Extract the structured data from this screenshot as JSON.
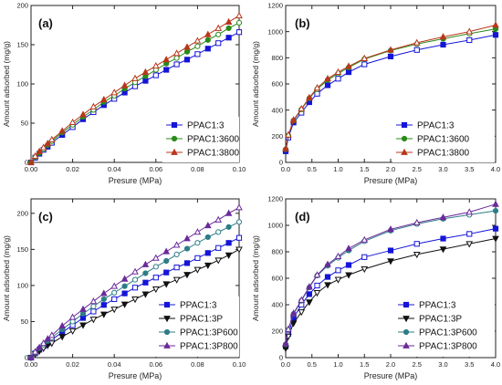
{
  "chart_data": [
    {
      "type": "line",
      "panel": "(a)",
      "xlabel": "Presure (MPa)",
      "ylabel": "Amount adsorbed (mg/g)",
      "xlim": [
        0,
        0.1
      ],
      "ylim": [
        0,
        200
      ],
      "xticks": [
        0.0,
        0.02,
        0.04,
        0.06,
        0.08,
        0.1
      ],
      "xtick_labels": [
        "0.00",
        "0.02",
        "0.04",
        "0.06",
        "0.08",
        "0.10"
      ],
      "yticks": [
        0,
        50,
        100,
        150,
        200
      ],
      "ytick_labels": [
        "0",
        "50",
        "100",
        "150",
        "200"
      ],
      "legend_position": "bottom-right",
      "series": [
        {
          "name": "PPAC1:3",
          "color": "#1515d8",
          "marker": "square",
          "x": [
            0.0,
            0.002,
            0.004,
            0.006,
            0.008,
            0.01,
            0.015,
            0.02,
            0.025,
            0.03,
            0.035,
            0.04,
            0.045,
            0.05,
            0.055,
            0.06,
            0.065,
            0.07,
            0.075,
            0.08,
            0.085,
            0.09,
            0.095,
            0.1
          ],
          "y": [
            0,
            6,
            11,
            16,
            20,
            25,
            35,
            45,
            55,
            64,
            73,
            81,
            89,
            97,
            104,
            111,
            118,
            125,
            131,
            138,
            145,
            152,
            159,
            166
          ]
        },
        {
          "name": "PPAC1:3600",
          "color": "#2a8a1a",
          "marker": "circle",
          "x": [
            0.0,
            0.002,
            0.004,
            0.006,
            0.008,
            0.01,
            0.015,
            0.02,
            0.025,
            0.03,
            0.035,
            0.04,
            0.045,
            0.05,
            0.055,
            0.06,
            0.065,
            0.07,
            0.075,
            0.08,
            0.085,
            0.09,
            0.095,
            0.1
          ],
          "y": [
            0,
            7,
            12,
            17,
            22,
            27,
            38,
            48,
            58,
            67,
            77,
            85,
            94,
            102,
            110,
            118,
            126,
            133,
            141,
            148,
            156,
            163,
            171,
            178
          ]
        },
        {
          "name": "PPAC1:3800",
          "color": "#b8371c",
          "marker": "triangle",
          "x": [
            0.0,
            0.002,
            0.004,
            0.006,
            0.008,
            0.01,
            0.015,
            0.02,
            0.025,
            0.03,
            0.035,
            0.04,
            0.045,
            0.05,
            0.055,
            0.06,
            0.065,
            0.07,
            0.075,
            0.08,
            0.085,
            0.09,
            0.095,
            0.1
          ],
          "y": [
            0,
            8,
            14,
            19,
            24,
            29,
            40,
            51,
            61,
            71,
            80,
            89,
            98,
            107,
            115,
            123,
            131,
            139,
            147,
            155,
            163,
            171,
            179,
            187
          ]
        }
      ]
    },
    {
      "type": "line",
      "panel": "(b)",
      "xlabel": "Presure (MPa)",
      "ylabel": "Amount adsorbed (mg/g)",
      "xlim": [
        0,
        4
      ],
      "ylim": [
        0,
        1200
      ],
      "xticks": [
        0.0,
        0.5,
        1.0,
        1.5,
        2.0,
        2.5,
        3.0,
        3.5,
        4.0
      ],
      "xtick_labels": [
        "0.0",
        "0.5",
        "1.0",
        "1.5",
        "2.0",
        "2.5",
        "3.0",
        "3.5",
        "4.0"
      ],
      "yticks": [
        0,
        200,
        400,
        600,
        800,
        1000,
        1200
      ],
      "ytick_labels": [
        "0",
        "200",
        "400",
        "600",
        "800",
        "1000",
        "1200"
      ],
      "legend_position": "bottom-right",
      "series": [
        {
          "name": "PPAC1:3",
          "color": "#1515d8",
          "marker": "square",
          "x": [
            0.0,
            0.05,
            0.15,
            0.3,
            0.45,
            0.6,
            0.8,
            1.0,
            1.2,
            1.5,
            2.0,
            2.5,
            3.0,
            3.5,
            4.0
          ],
          "y": [
            85,
            190,
            305,
            380,
            460,
            525,
            590,
            640,
            690,
            750,
            810,
            860,
            900,
            935,
            975
          ]
        },
        {
          "name": "PPAC1:3600",
          "color": "#2a8a1a",
          "marker": "circle",
          "x": [
            0.0,
            0.05,
            0.15,
            0.3,
            0.45,
            0.6,
            0.8,
            1.0,
            1.2,
            1.5,
            2.0,
            2.5,
            3.0,
            3.5,
            4.0
          ],
          "y": [
            100,
            205,
            320,
            405,
            490,
            560,
            630,
            680,
            725,
            790,
            855,
            905,
            945,
            985,
            1020
          ]
        },
        {
          "name": "PPAC1:3800",
          "color": "#b8371c",
          "marker": "triangle",
          "x": [
            0.0,
            0.05,
            0.15,
            0.3,
            0.45,
            0.6,
            0.8,
            1.0,
            1.2,
            1.5,
            2.0,
            2.5,
            3.0,
            3.5,
            4.0
          ],
          "y": [
            105,
            210,
            325,
            410,
            495,
            570,
            640,
            690,
            735,
            795,
            860,
            915,
            960,
            1000,
            1050
          ]
        }
      ]
    },
    {
      "type": "line",
      "panel": "(c)",
      "xlabel": "Presure (MPa)",
      "ylabel": "Amount adsorbed (mg/g)",
      "xlim": [
        0,
        0.1
      ],
      "ylim": [
        0,
        220
      ],
      "xticks": [
        0.0,
        0.02,
        0.04,
        0.06,
        0.08,
        0.1
      ],
      "xtick_labels": [
        "0.00",
        "0.02",
        "0.04",
        "0.06",
        "0.08",
        "0.10"
      ],
      "yticks": [
        0,
        50,
        100,
        150,
        200
      ],
      "ytick_labels": [
        "0",
        "50",
        "100",
        "150",
        "200"
      ],
      "legend_position": "bottom-right",
      "series": [
        {
          "name": "PPAC1:3",
          "color": "#1515d8",
          "marker": "square",
          "x": [
            0.0,
            0.002,
            0.004,
            0.006,
            0.008,
            0.01,
            0.015,
            0.02,
            0.025,
            0.03,
            0.035,
            0.04,
            0.045,
            0.05,
            0.055,
            0.06,
            0.065,
            0.07,
            0.075,
            0.08,
            0.085,
            0.09,
            0.095,
            0.1
          ],
          "y": [
            0,
            6,
            11,
            16,
            20,
            25,
            35,
            45,
            55,
            64,
            73,
            81,
            89,
            97,
            104,
            111,
            118,
            125,
            131,
            138,
            145,
            152,
            159,
            166
          ]
        },
        {
          "name": "PPAC1:3P",
          "color": "#111111",
          "marker": "triangle-down",
          "x": [
            0.0,
            0.002,
            0.004,
            0.006,
            0.008,
            0.01,
            0.015,
            0.02,
            0.025,
            0.03,
            0.035,
            0.04,
            0.045,
            0.05,
            0.055,
            0.06,
            0.065,
            0.07,
            0.075,
            0.08,
            0.085,
            0.09,
            0.095,
            0.1
          ],
          "y": [
            0,
            5,
            9,
            13,
            17,
            20,
            29,
            37,
            45,
            53,
            60,
            67,
            74,
            81,
            88,
            95,
            102,
            108,
            115,
            122,
            128,
            135,
            142,
            150
          ]
        },
        {
          "name": "PPAC1:3P600",
          "color": "#2e7d86",
          "marker": "circle",
          "x": [
            0.0,
            0.002,
            0.004,
            0.006,
            0.008,
            0.01,
            0.015,
            0.02,
            0.025,
            0.03,
            0.035,
            0.04,
            0.045,
            0.05,
            0.055,
            0.06,
            0.065,
            0.07,
            0.075,
            0.08,
            0.085,
            0.09,
            0.095,
            0.1
          ],
          "y": [
            0,
            7,
            13,
            18,
            23,
            28,
            39,
            50,
            61,
            71,
            81,
            90,
            99,
            108,
            117,
            126,
            134,
            143,
            151,
            159,
            167,
            174,
            181,
            188
          ]
        },
        {
          "name": "PPAC1:3P800",
          "color": "#6a2a9a",
          "marker": "triangle",
          "x": [
            0.0,
            0.002,
            0.004,
            0.006,
            0.008,
            0.01,
            0.015,
            0.02,
            0.025,
            0.03,
            0.035,
            0.04,
            0.045,
            0.05,
            0.055,
            0.06,
            0.065,
            0.07,
            0.075,
            0.08,
            0.085,
            0.09,
            0.095,
            0.1
          ],
          "y": [
            0,
            8,
            14,
            20,
            26,
            31,
            44,
            56,
            67,
            78,
            89,
            99,
            109,
            119,
            129,
            138,
            147,
            156,
            165,
            174,
            183,
            191,
            200,
            208
          ]
        }
      ]
    },
    {
      "type": "line",
      "panel": "(d)",
      "xlabel": "Presure (MPa)",
      "ylabel": "Amount adsorbed (mg/g)",
      "xlim": [
        0,
        4
      ],
      "ylim": [
        0,
        1200
      ],
      "xticks": [
        0.0,
        0.5,
        1.0,
        1.5,
        2.0,
        2.5,
        3.0,
        3.5,
        4.0
      ],
      "xtick_labels": [
        "0.0",
        "0.5",
        "1.0",
        "1.5",
        "2.0",
        "2.5",
        "3.0",
        "3.5",
        "4.0"
      ],
      "yticks": [
        0,
        200,
        400,
        600,
        800,
        1000,
        1200
      ],
      "ytick_labels": [
        "0",
        "200",
        "400",
        "600",
        "800",
        "1000",
        "1200"
      ],
      "legend_position": "bottom-right",
      "series": [
        {
          "name": "PPAC1:3",
          "color": "#1515d8",
          "marker": "square",
          "x": [
            0.0,
            0.05,
            0.15,
            0.3,
            0.45,
            0.6,
            0.8,
            1.0,
            1.2,
            1.5,
            2.0,
            2.5,
            3.0,
            3.5,
            4.0
          ],
          "y": [
            85,
            180,
            300,
            400,
            480,
            545,
            610,
            660,
            700,
            760,
            810,
            860,
            900,
            935,
            975
          ]
        },
        {
          "name": "PPAC1:3P",
          "color": "#111111",
          "marker": "triangle-down",
          "x": [
            0.0,
            0.05,
            0.15,
            0.3,
            0.45,
            0.6,
            0.8,
            1.0,
            1.2,
            1.5,
            2.0,
            2.5,
            3.0,
            3.5,
            4.0
          ],
          "y": [
            70,
            160,
            260,
            345,
            420,
            490,
            550,
            590,
            625,
            670,
            730,
            780,
            820,
            860,
            900
          ]
        },
        {
          "name": "PPAC1:3P600",
          "color": "#2e7d86",
          "marker": "circle",
          "x": [
            0.0,
            0.05,
            0.15,
            0.3,
            0.45,
            0.6,
            0.8,
            1.0,
            1.2,
            1.5,
            2.0,
            2.5,
            3.0,
            3.5,
            4.0
          ],
          "y": [
            100,
            210,
            330,
            430,
            530,
            620,
            695,
            755,
            810,
            880,
            960,
            1010,
            1050,
            1080,
            1110
          ]
        },
        {
          "name": "PPAC1:3P800",
          "color": "#6a2a9a",
          "marker": "triangle",
          "x": [
            0.0,
            0.05,
            0.15,
            0.3,
            0.45,
            0.6,
            0.8,
            1.0,
            1.2,
            1.5,
            2.0,
            2.5,
            3.0,
            3.5,
            4.0
          ],
          "y": [
            105,
            215,
            335,
            435,
            535,
            625,
            705,
            765,
            825,
            890,
            970,
            1020,
            1060,
            1100,
            1160
          ]
        }
      ]
    }
  ]
}
